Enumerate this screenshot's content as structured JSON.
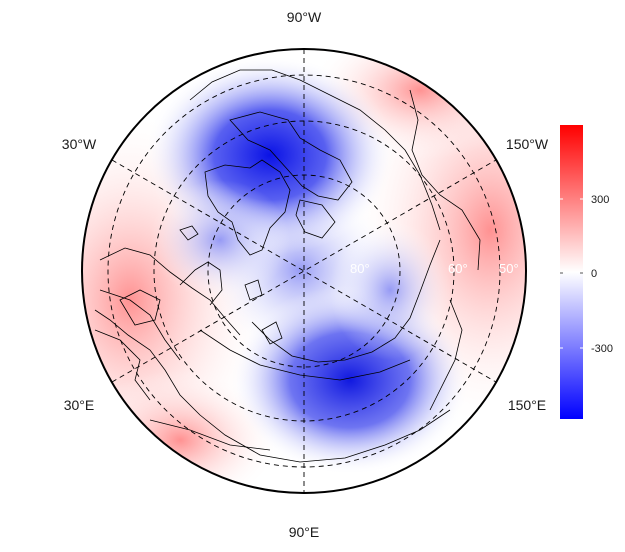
{
  "map": {
    "projection": "north polar stereographic",
    "longitude_labels": [
      "90°W",
      "30°W",
      "150°W",
      "30°E",
      "150°E",
      "90°E"
    ],
    "latitude_labels": [
      "80°",
      "60°",
      "50°"
    ],
    "colorbar": {
      "ticks": [
        "300",
        "0",
        "-300"
      ],
      "scale": "diverging blue-white-red",
      "colors": {
        "low": "#0000ff",
        "mid": "#ffffff",
        "high": "#ff0000"
      }
    }
  }
}
